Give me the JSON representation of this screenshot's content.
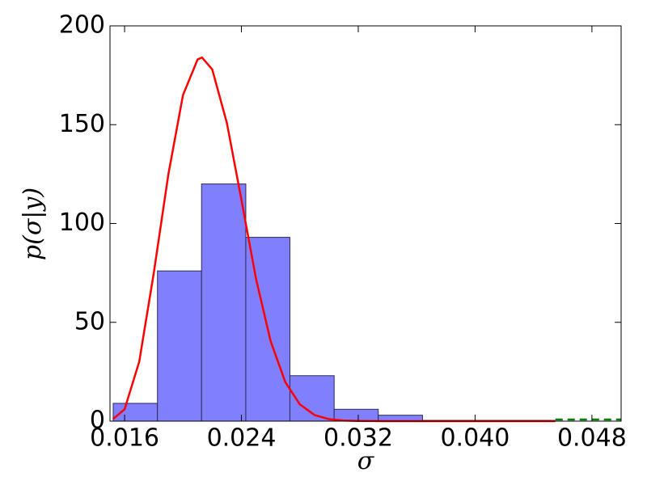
{
  "chart_data": {
    "type": "histogram",
    "x_label": "σ",
    "y_label": "p(σ|y)",
    "bins": [
      0.01522,
      0.01825,
      0.02127,
      0.0243,
      0.02732,
      0.03035,
      0.03337,
      0.0364,
      0.03942,
      0.04245,
      0.04547
    ],
    "values": [
      9,
      76,
      120,
      93,
      23,
      6,
      3,
      0.4,
      0.4,
      0.4
    ],
    "color": "#8080ff",
    "edge_color": "#2a2a55",
    "lines": [
      {
        "color": "#ff0000",
        "dash": false,
        "x": [
          0.0152,
          0.016,
          0.017,
          0.018,
          0.019,
          0.02,
          0.021,
          0.0213,
          0.022,
          0.023,
          0.024,
          0.025,
          0.026,
          0.027,
          0.028,
          0.029,
          0.03,
          0.031,
          0.032,
          0.034,
          0.0455
        ],
        "values": [
          1,
          6,
          30,
          75,
          125,
          165,
          183,
          184,
          178,
          151,
          112,
          72,
          40.5,
          19.8,
          8.5,
          3.1,
          1,
          0.3,
          0.1,
          0,
          0
        ]
      },
      {
        "color": "#008000",
        "dash": true,
        "x": [
          0.0455,
          0.05
        ],
        "values": [
          0.8,
          0.8
        ]
      }
    ],
    "xlim": [
      0.015,
      0.05
    ],
    "ylim": [
      0,
      200
    ],
    "xticks": [
      0.016,
      0.024,
      0.032,
      {
        "value": 0.04,
        "label": "0.040"
      },
      0.048
    ],
    "yticks": [
      0,
      50,
      100,
      150,
      200
    ]
  }
}
